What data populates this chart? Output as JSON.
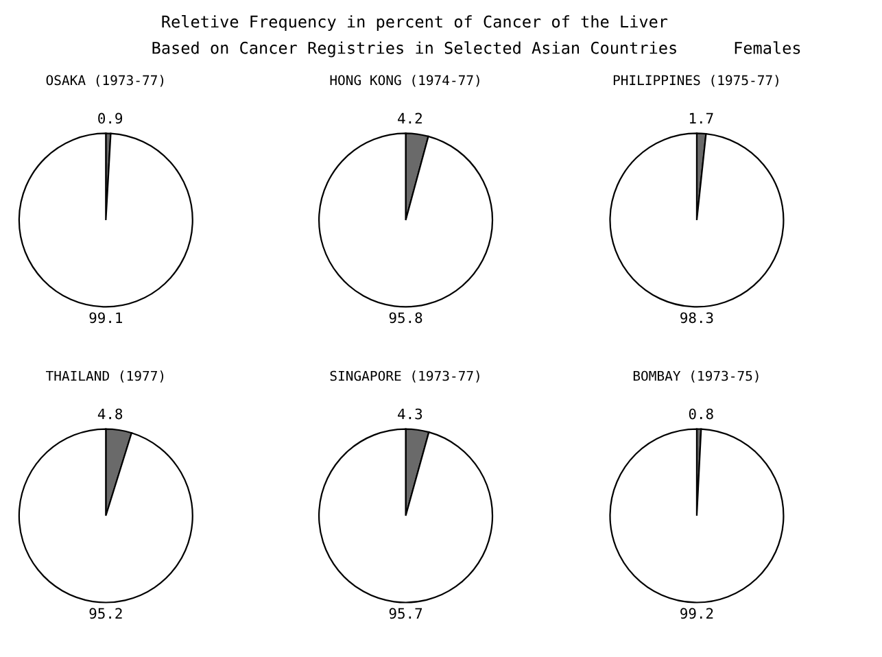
{
  "chart_data": [
    {
      "type": "pie",
      "title": "OSAKA (1973-77)",
      "categories": [
        null,
        null
      ],
      "values": [
        0.9,
        99.1
      ],
      "colors": [
        "#6a6a6a",
        "#ffffff"
      ],
      "data_labels": true,
      "annotations": [
        "Reletive Frequency in percent of Cancer of the Liver",
        "Based on Cancer Registries in Selected Asian Countries",
        "Females"
      ]
    },
    {
      "type": "pie",
      "title": "HONG KONG (1974-77)",
      "categories": [
        null,
        null
      ],
      "values": [
        4.2,
        95.8
      ],
      "colors": [
        "#6a6a6a",
        "#ffffff"
      ],
      "data_labels": true
    },
    {
      "type": "pie",
      "title": "PHILIPPINES (1975-77)",
      "categories": [
        null,
        null
      ],
      "values": [
        1.7,
        98.3
      ],
      "colors": [
        "#6a6a6a",
        "#ffffff"
      ],
      "data_labels": true
    },
    {
      "type": "pie",
      "title": "THAILAND (1977)",
      "categories": [
        null,
        null
      ],
      "values": [
        4.8,
        95.2
      ],
      "colors": [
        "#6a6a6a",
        "#ffffff"
      ],
      "data_labels": true
    },
    {
      "type": "pie",
      "title": "SINGAPORE (1973-77)",
      "categories": [
        null,
        null
      ],
      "values": [
        4.3,
        95.7
      ],
      "colors": [
        "#6a6a6a",
        "#ffffff"
      ],
      "data_labels": true
    },
    {
      "type": "pie",
      "title": "BOMBAY (1973-75)",
      "categories": [
        null,
        null
      ],
      "values": [
        0.8,
        99.2
      ],
      "colors": [
        "#6a6a6a",
        "#ffffff"
      ],
      "data_labels": true
    }
  ]
}
